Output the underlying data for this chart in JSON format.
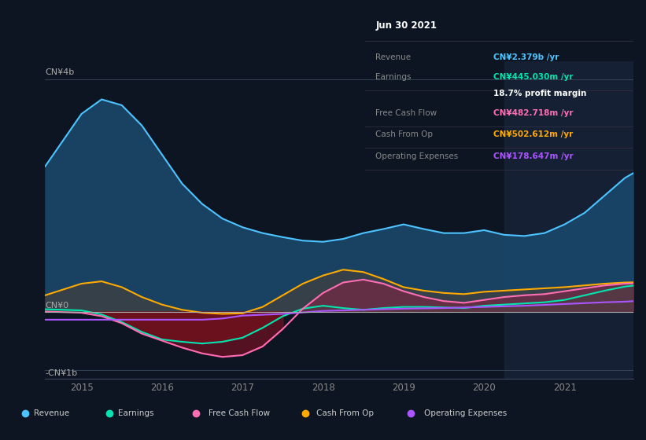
{
  "background_color": "#0d1523",
  "chart_bg_color": "#0d1523",
  "title_text": "Jun 30 2021",
  "y_label_top": "CN¥4b",
  "y_label_zero": "CN¥0",
  "y_label_bottom": "-CN¥1b",
  "x_ticks": [
    2015,
    2016,
    2017,
    2018,
    2019,
    2020,
    2021
  ],
  "highlight_start": 2020.25,
  "highlight_end": 2021.85,
  "legend": [
    {
      "label": "Revenue",
      "color": "#4dc3ff"
    },
    {
      "label": "Earnings",
      "color": "#00e5b0"
    },
    {
      "label": "Free Cash Flow",
      "color": "#ff6eb4"
    },
    {
      "label": "Cash From Op",
      "color": "#ffaa00"
    },
    {
      "label": "Operating Expenses",
      "color": "#aa55ff"
    }
  ],
  "ylim": [
    -1.15,
    4.3
  ],
  "xlim": [
    2014.55,
    2021.85
  ],
  "revenue": {
    "x": [
      2014.55,
      2015.0,
      2015.25,
      2015.5,
      2015.75,
      2016.0,
      2016.25,
      2016.5,
      2016.75,
      2017.0,
      2017.25,
      2017.5,
      2017.75,
      2018.0,
      2018.25,
      2018.5,
      2018.75,
      2019.0,
      2019.25,
      2019.5,
      2019.75,
      2020.0,
      2020.25,
      2020.5,
      2020.75,
      2021.0,
      2021.25,
      2021.5,
      2021.75,
      2021.85
    ],
    "y": [
      2.5,
      3.4,
      3.65,
      3.55,
      3.2,
      2.7,
      2.2,
      1.85,
      1.6,
      1.45,
      1.35,
      1.28,
      1.22,
      1.2,
      1.25,
      1.35,
      1.42,
      1.5,
      1.42,
      1.35,
      1.35,
      1.4,
      1.32,
      1.3,
      1.35,
      1.5,
      1.7,
      2.0,
      2.3,
      2.379
    ],
    "color": "#4dc3ff",
    "fill_color": "#1a4a6e",
    "fill_alpha": 0.85
  },
  "earnings": {
    "x": [
      2014.55,
      2015.0,
      2015.25,
      2015.5,
      2015.75,
      2016.0,
      2016.25,
      2016.5,
      2016.75,
      2017.0,
      2017.25,
      2017.5,
      2017.75,
      2018.0,
      2018.25,
      2018.5,
      2018.75,
      2019.0,
      2019.25,
      2019.5,
      2019.75,
      2020.0,
      2020.25,
      2020.5,
      2020.75,
      2021.0,
      2021.25,
      2021.5,
      2021.75,
      2021.85
    ],
    "y": [
      0.04,
      0.02,
      -0.05,
      -0.18,
      -0.35,
      -0.48,
      -0.52,
      -0.55,
      -0.52,
      -0.45,
      -0.28,
      -0.08,
      0.05,
      0.1,
      0.06,
      0.03,
      0.06,
      0.08,
      0.08,
      0.07,
      0.06,
      0.1,
      0.12,
      0.14,
      0.16,
      0.2,
      0.28,
      0.36,
      0.43,
      0.445
    ],
    "color": "#00e5b0",
    "pos_fill": "#00e5b0",
    "neg_fill": "#7a1010"
  },
  "free_cash_flow": {
    "x": [
      2014.55,
      2015.0,
      2015.25,
      2015.5,
      2015.75,
      2016.0,
      2016.25,
      2016.5,
      2016.75,
      2017.0,
      2017.25,
      2017.5,
      2017.75,
      2018.0,
      2018.25,
      2018.5,
      2018.75,
      2019.0,
      2019.25,
      2019.5,
      2019.75,
      2020.0,
      2020.25,
      2020.5,
      2020.75,
      2021.0,
      2021.25,
      2021.5,
      2021.75,
      2021.85
    ],
    "y": [
      0.0,
      -0.02,
      -0.08,
      -0.2,
      -0.38,
      -0.5,
      -0.62,
      -0.72,
      -0.78,
      -0.75,
      -0.6,
      -0.3,
      0.05,
      0.32,
      0.5,
      0.55,
      0.48,
      0.35,
      0.25,
      0.18,
      0.15,
      0.2,
      0.25,
      0.28,
      0.3,
      0.35,
      0.4,
      0.45,
      0.48,
      0.483
    ],
    "color": "#ff6eb4",
    "pos_fill": "#cc3377",
    "neg_fill": "#8b1020"
  },
  "cash_from_op": {
    "x": [
      2014.55,
      2015.0,
      2015.25,
      2015.5,
      2015.75,
      2016.0,
      2016.25,
      2016.5,
      2016.75,
      2017.0,
      2017.25,
      2017.5,
      2017.75,
      2018.0,
      2018.25,
      2018.5,
      2018.75,
      2019.0,
      2019.25,
      2019.5,
      2019.75,
      2020.0,
      2020.25,
      2020.5,
      2020.75,
      2021.0,
      2021.25,
      2021.5,
      2021.75,
      2021.85
    ],
    "y": [
      0.28,
      0.48,
      0.52,
      0.42,
      0.25,
      0.12,
      0.03,
      -0.02,
      -0.04,
      -0.03,
      0.08,
      0.28,
      0.48,
      0.62,
      0.72,
      0.68,
      0.56,
      0.42,
      0.36,
      0.32,
      0.3,
      0.34,
      0.36,
      0.38,
      0.4,
      0.42,
      0.45,
      0.48,
      0.5,
      0.503
    ],
    "color": "#ffaa00",
    "fill_color": "#555530",
    "fill_alpha": 0.7
  },
  "operating_expenses": {
    "x": [
      2014.55,
      2015.0,
      2015.25,
      2016.0,
      2016.5,
      2016.75,
      2017.0,
      2017.5,
      2018.0,
      2018.5,
      2019.0,
      2019.5,
      2020.0,
      2020.5,
      2021.0,
      2021.5,
      2021.75,
      2021.85
    ],
    "y": [
      -0.14,
      -0.14,
      -0.14,
      -0.14,
      -0.14,
      -0.12,
      -0.07,
      -0.04,
      0.01,
      0.03,
      0.05,
      0.06,
      0.08,
      0.1,
      0.13,
      0.16,
      0.17,
      0.179
    ],
    "color": "#aa55ff"
  },
  "info_rows": [
    {
      "label": "Revenue",
      "value": "CN¥2.379b /yr",
      "label_color": "#888888",
      "value_color": "#4dc3ff"
    },
    {
      "label": "Earnings",
      "value": "CN¥445.030m /yr",
      "label_color": "#888888",
      "value_color": "#00e5b0"
    },
    {
      "label": "",
      "value": "18.7% profit margin",
      "label_color": "#888888",
      "value_color": "#ffffff"
    },
    {
      "label": "Free Cash Flow",
      "value": "CN¥482.718m /yr",
      "label_color": "#888888",
      "value_color": "#ff6eb4"
    },
    {
      "label": "Cash From Op",
      "value": "CN¥502.612m /yr",
      "label_color": "#888888",
      "value_color": "#ffaa00"
    },
    {
      "label": "Operating Expenses",
      "value": "CN¥178.647m /yr",
      "label_color": "#888888",
      "value_color": "#aa55ff"
    }
  ]
}
